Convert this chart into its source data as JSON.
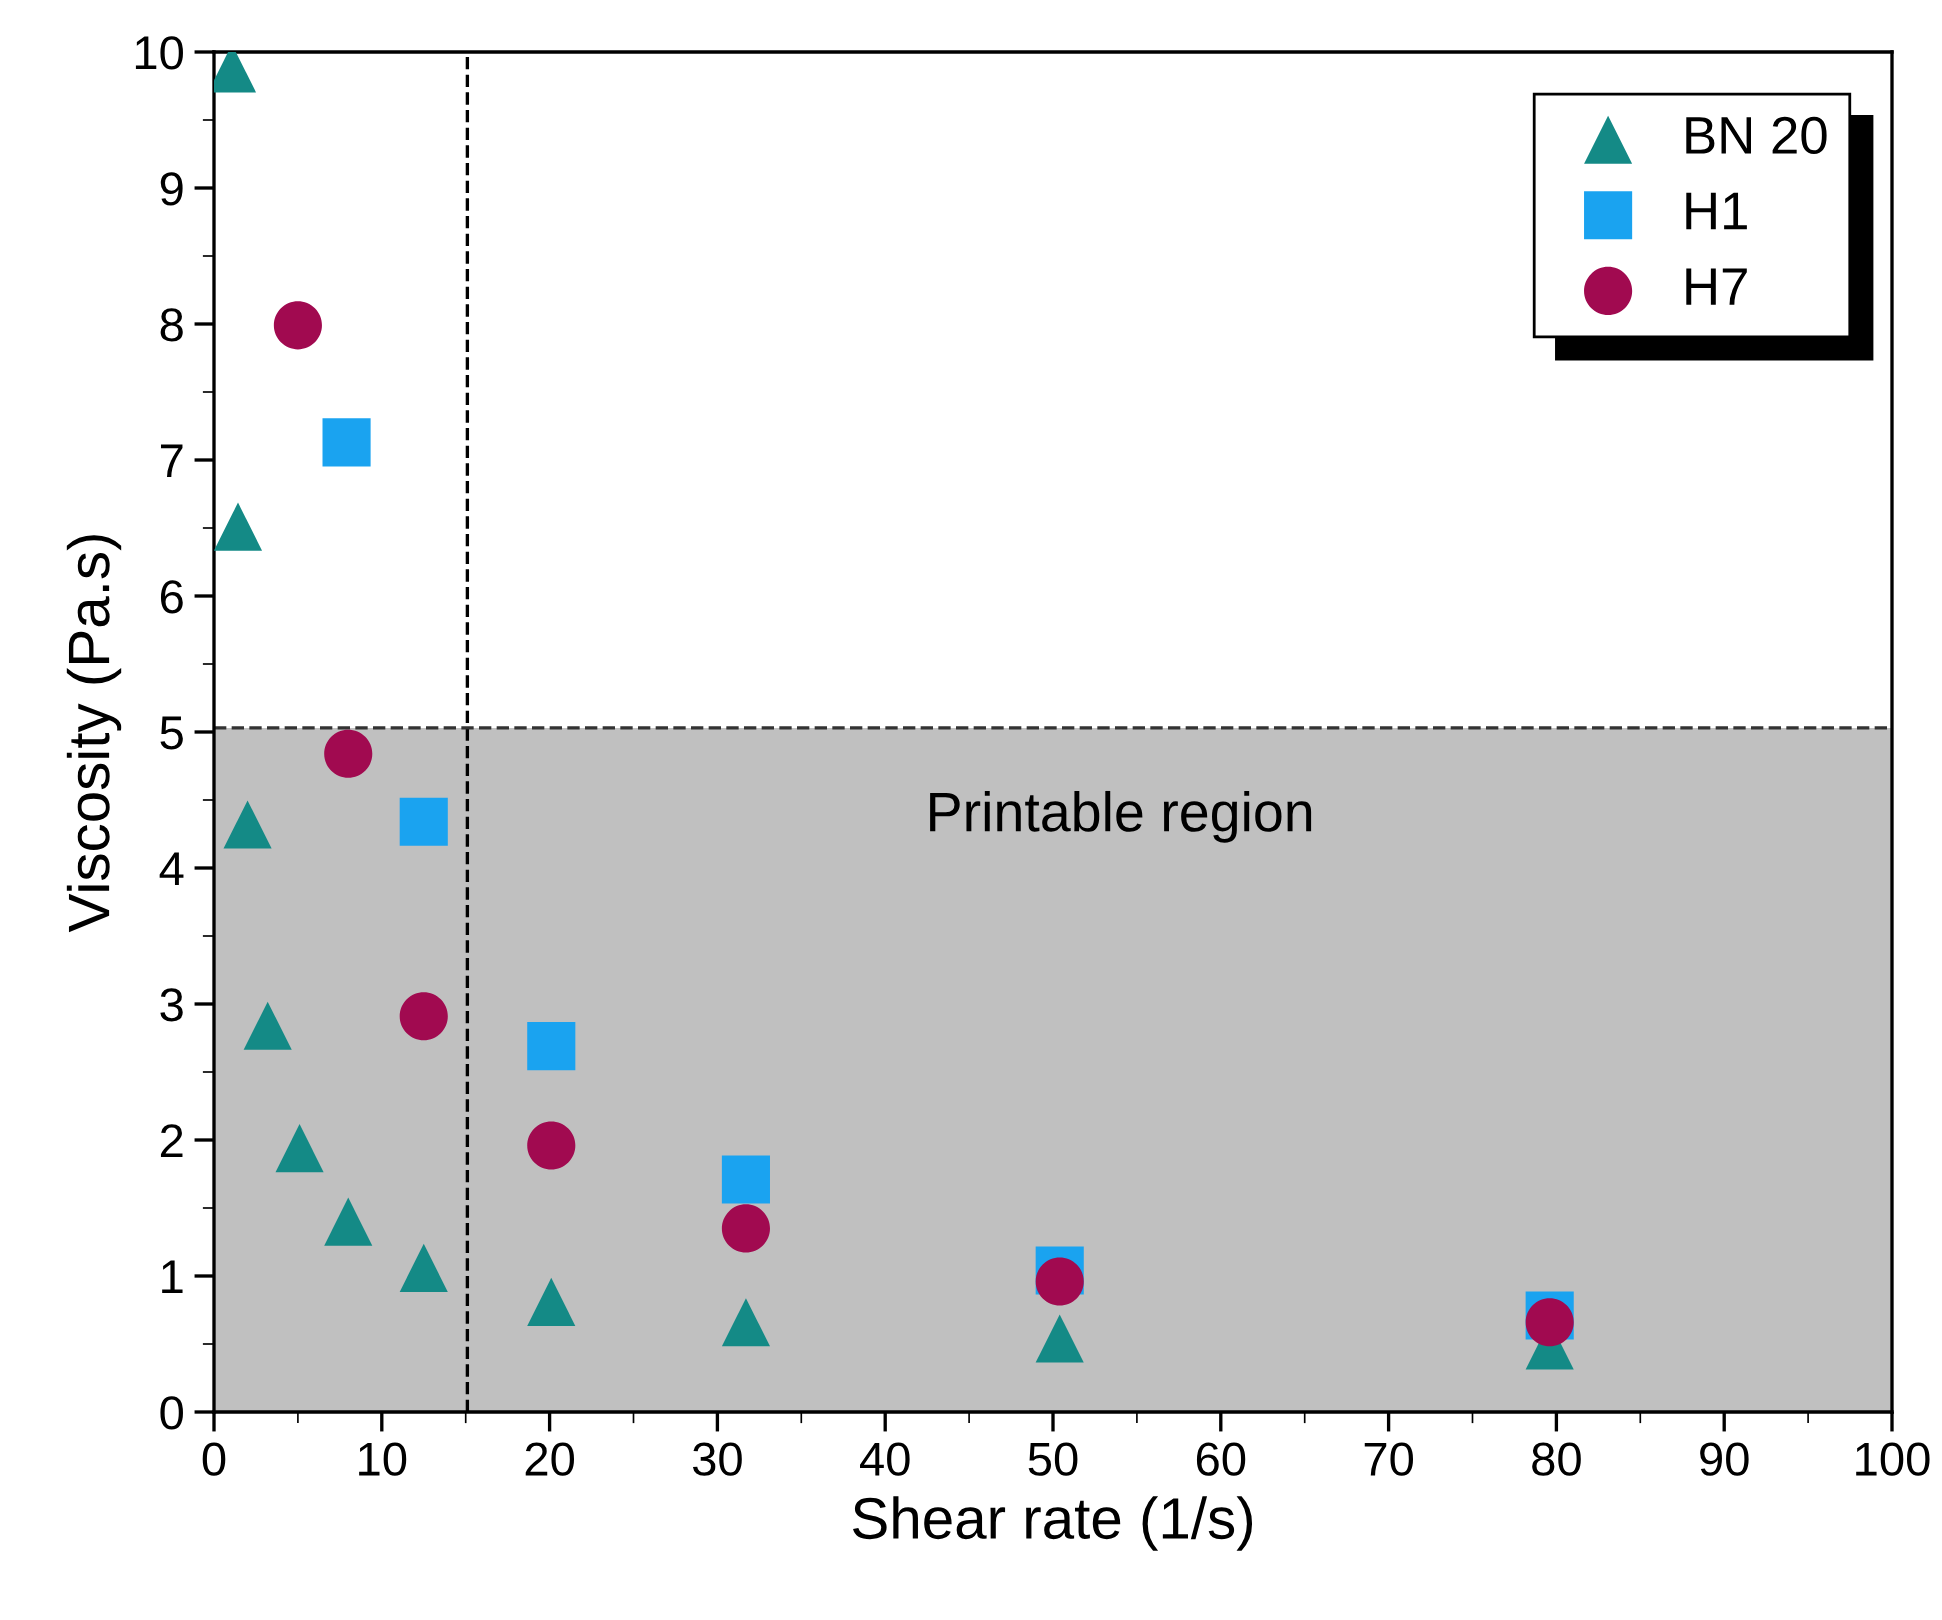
{
  "chart_data": {
    "type": "scatter",
    "xlabel": "Shear rate (1/s)",
    "ylabel": "Viscosity (Pa.s)",
    "xlim": [
      0,
      100
    ],
    "ylim": [
      0,
      10
    ],
    "xticks": [
      0,
      10,
      20,
      30,
      40,
      50,
      60,
      70,
      80,
      90,
      100
    ],
    "yticks": [
      0,
      1,
      2,
      3,
      4,
      5,
      6,
      7,
      8,
      9,
      10
    ],
    "grid": false,
    "legend": "top right",
    "series": [
      {
        "name": "BN 20",
        "color": "#148a86",
        "marker": "triangle",
        "x": [
          1.07,
          1.43,
          2.0,
          3.2,
          5.1,
          8.0,
          12.5,
          20.1,
          31.7,
          50.4,
          79.6
        ],
        "values": [
          9.88,
          6.51,
          4.32,
          2.84,
          1.94,
          1.4,
          1.06,
          0.81,
          0.66,
          0.54,
          0.49
        ]
      },
      {
        "name": "H1",
        "color": "#1aa3f0",
        "marker": "square",
        "x": [
          7.9,
          12.5,
          20.1,
          31.7,
          50.4,
          79.6
        ],
        "values": [
          7.13,
          4.34,
          2.69,
          1.71,
          1.04,
          0.71
        ]
      },
      {
        "name": "H7",
        "color": "#a10a50",
        "marker": "circle",
        "x": [
          5.0,
          8.0,
          12.5,
          20.1,
          31.7,
          50.4,
          79.6
        ],
        "values": [
          7.99,
          4.84,
          2.91,
          1.96,
          1.35,
          0.96,
          0.66
        ]
      }
    ],
    "bands": [
      {
        "axis": "y",
        "from": 0,
        "to": 5.03,
        "label": "Printable region",
        "color": "#c0c0c0"
      }
    ],
    "ref_lines": [
      {
        "axis": "x",
        "value": 15.1,
        "line_style": "dashed",
        "color": "#000000"
      },
      {
        "axis": "y",
        "value": 5.03,
        "line_style": "dashed",
        "color": "#333333"
      }
    ]
  }
}
